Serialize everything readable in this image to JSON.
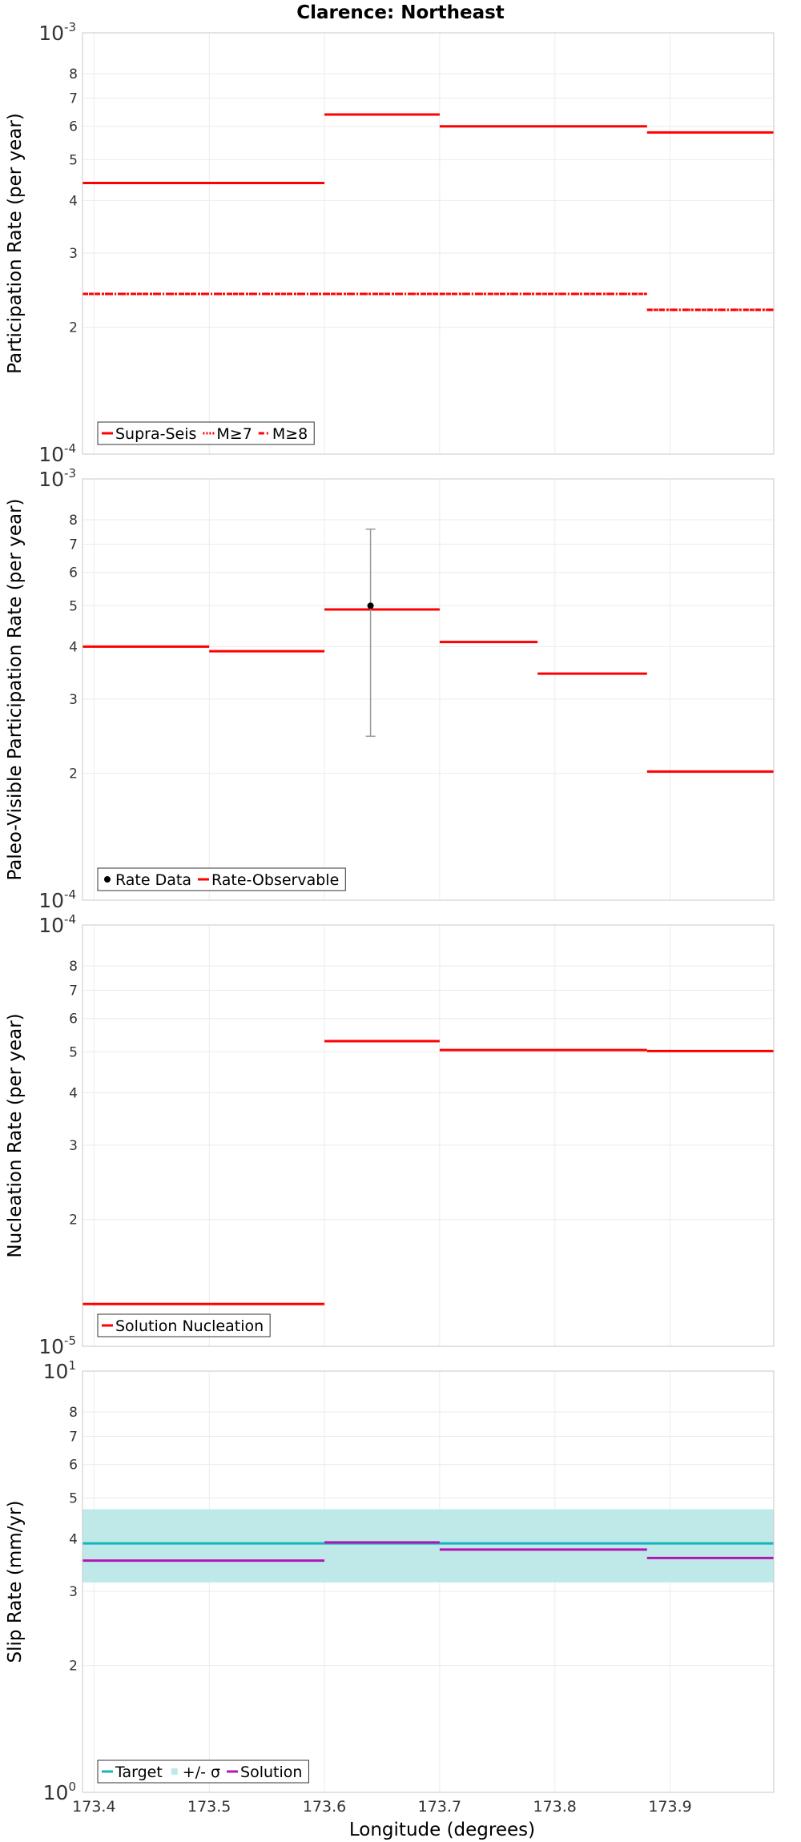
{
  "title": "Clarence: Northeast",
  "xlabel": "Longitude (degrees)",
  "x_ticks": [
    "173.4",
    "173.5",
    "173.6",
    "173.7",
    "173.8",
    "173.9"
  ],
  "x_tick_values": [
    173.4,
    173.5,
    173.6,
    173.7,
    173.8,
    173.9
  ],
  "xlim": [
    173.39,
    173.99
  ],
  "chart_data": [
    {
      "type": "line",
      "ylabel": "Participation Rate (per year)",
      "yscale": "log",
      "ylim": [
        0.0001,
        0.001
      ],
      "grid": true,
      "legend_position": "bottom-left",
      "y_axis_labels": {
        "top_base": "10",
        "top_exp": "-3",
        "bottom_base": "10",
        "bottom_exp": "-4",
        "minor": [
          "2",
          "3",
          "4",
          "5",
          "6",
          "7",
          "8"
        ]
      },
      "series": [
        {
          "name": "Supra-Seis",
          "color": "#ff0000",
          "style": "solid",
          "segments": [
            [
              173.39,
              173.6,
              0.00044
            ],
            [
              173.6,
              173.7,
              0.00064
            ],
            [
              173.7,
              173.88,
              0.0006
            ],
            [
              173.88,
              173.99,
              0.00058
            ]
          ]
        },
        {
          "name": "M≥7",
          "color": "#ff0000",
          "style": "dotted",
          "segments": [
            [
              173.39,
              173.6,
              0.00024
            ],
            [
              173.6,
              173.7,
              0.00024
            ],
            [
              173.7,
              173.88,
              0.00024
            ],
            [
              173.88,
              173.99,
              0.00022
            ]
          ]
        },
        {
          "name": "M≥8",
          "color": "#ff0000",
          "style": "dashdot",
          "segments": [
            [
              173.39,
              173.6,
              0.00024
            ],
            [
              173.6,
              173.7,
              0.00024
            ],
            [
              173.7,
              173.88,
              0.00024
            ],
            [
              173.88,
              173.99,
              0.00022
            ]
          ]
        }
      ]
    },
    {
      "type": "line",
      "ylabel": "Paleo-Visible Participation Rate (per year)",
      "yscale": "log",
      "ylim": [
        0.0001,
        0.001
      ],
      "grid": true,
      "legend_position": "bottom-left",
      "y_axis_labels": {
        "top_base": "10",
        "top_exp": "-3",
        "bottom_base": "10",
        "bottom_exp": "-4",
        "minor": [
          "2",
          "3",
          "4",
          "5",
          "6",
          "7",
          "8"
        ]
      },
      "points": [
        {
          "name": "Rate Data",
          "color": "#000000",
          "x": 173.64,
          "y": 0.0005,
          "y_low": 0.000245,
          "y_high": 0.00076
        }
      ],
      "series": [
        {
          "name": "Rate-Observable",
          "color": "#ff0000",
          "style": "solid",
          "segments": [
            [
              173.39,
              173.5,
              0.0004
            ],
            [
              173.5,
              173.6,
              0.00039
            ],
            [
              173.6,
              173.7,
              0.00049
            ],
            [
              173.7,
              173.785,
              0.00041
            ],
            [
              173.785,
              173.88,
              0.000345
            ],
            [
              173.88,
              173.99,
              0.000202
            ]
          ]
        }
      ]
    },
    {
      "type": "line",
      "ylabel": "Nucleation Rate (per year)",
      "yscale": "log",
      "ylim": [
        1e-05,
        0.0001
      ],
      "grid": true,
      "legend_position": "bottom-left",
      "y_axis_labels": {
        "top_base": "10",
        "top_exp": "-4",
        "bottom_base": "10",
        "bottom_exp": "-5",
        "minor": [
          "2",
          "3",
          "4",
          "5",
          "6",
          "7",
          "8"
        ]
      },
      "series": [
        {
          "name": "Solution Nucleation",
          "color": "#ff0000",
          "style": "solid",
          "segments": [
            [
              173.39,
              173.6,
              1.26e-05
            ],
            [
              173.6,
              173.7,
              5.3e-05
            ],
            [
              173.7,
              173.88,
              5.05e-05
            ],
            [
              173.88,
              173.99,
              5.02e-05
            ]
          ]
        }
      ]
    },
    {
      "type": "line",
      "ylabel": "Slip Rate (mm/yr)",
      "yscale": "log",
      "ylim": [
        1,
        10
      ],
      "grid": true,
      "legend_position": "bottom-left",
      "y_axis_labels": {
        "top_base": "10",
        "top_exp": "1",
        "bottom_base": "10",
        "bottom_exp": "0",
        "minor": [
          "2",
          "3",
          "4",
          "5",
          "6",
          "7",
          "8"
        ]
      },
      "band": {
        "name": "+/- σ",
        "color": "#bfe9e9",
        "low": 3.15,
        "high": 4.7
      },
      "series": [
        {
          "name": "Target",
          "color": "#17b4be",
          "style": "solid",
          "segments": [
            [
              173.39,
              173.99,
              3.9
            ]
          ]
        },
        {
          "name": "Solution",
          "color": "#b315b3",
          "style": "solid",
          "segments": [
            [
              173.39,
              173.6,
              3.55
            ],
            [
              173.6,
              173.7,
              3.92
            ],
            [
              173.7,
              173.88,
              3.77
            ],
            [
              173.88,
              173.99,
              3.6
            ]
          ]
        }
      ]
    }
  ]
}
